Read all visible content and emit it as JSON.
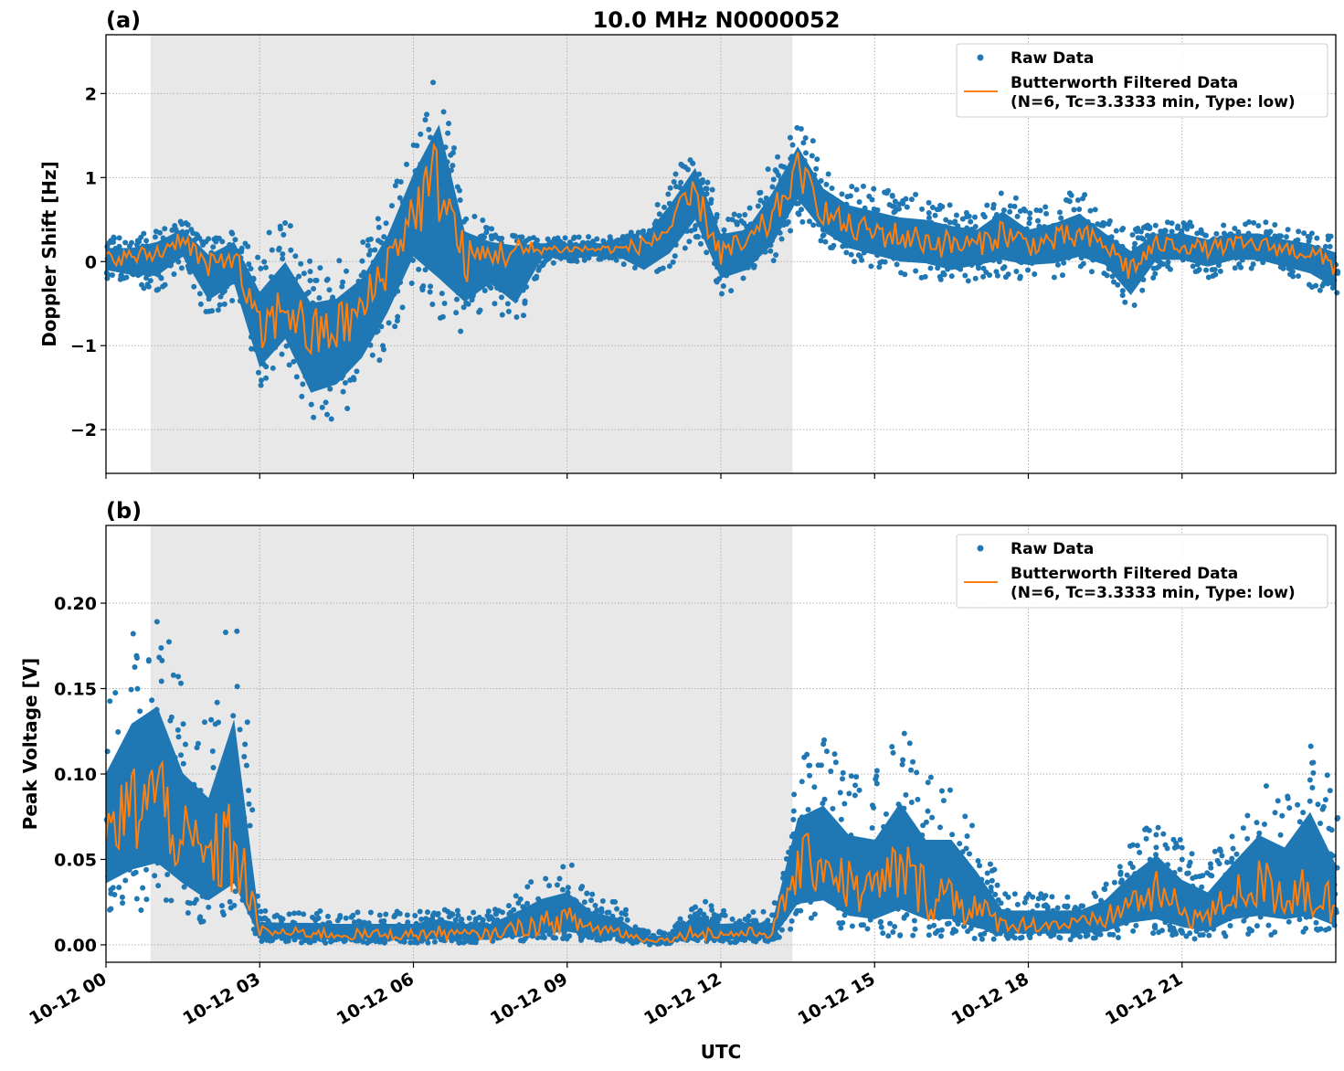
{
  "chart_data": [
    {
      "type": "scatter",
      "panel_label": "(a)",
      "title": "10.0 MHz N0000052",
      "xlabel": "",
      "ylabel": "Doppler Shift [Hz]",
      "xlim_hours": [
        0,
        24
      ],
      "ylim": [
        -2.52,
        2.7
      ],
      "yticks": [
        -2,
        -1,
        0,
        1,
        2
      ],
      "ytick_labels": [
        "−2",
        "−1",
        "0",
        "1",
        "2"
      ],
      "grid": true,
      "shaded_span_hours": [
        0.87,
        13.4
      ],
      "legend_position": "top-right",
      "legend": [
        "Raw Data",
        "Butterworth Filtered Data",
        "(N=6, Tc=3.3333 min, Type: low)"
      ],
      "x_hours": [
        0,
        0.5,
        1,
        1.5,
        2,
        2.5,
        3,
        3.5,
        4,
        4.5,
        5,
        5.5,
        6,
        6.5,
        7,
        7.5,
        8,
        8.5,
        9,
        9.5,
        10,
        10.5,
        11,
        11.5,
        12,
        12.5,
        13,
        13.5,
        14,
        14.5,
        15,
        15.5,
        16,
        16.5,
        17,
        17.5,
        18,
        18.5,
        19,
        19.5,
        20,
        20.5,
        21,
        21.5,
        22,
        22.5,
        23,
        23.5,
        24
      ],
      "series": [
        {
          "name": "Butterworth Filtered Data",
          "values": [
            0.05,
            0.05,
            0.1,
            0.3,
            -0.1,
            0.1,
            -0.9,
            -0.5,
            -0.9,
            -0.8,
            -0.6,
            0.0,
            0.6,
            1.0,
            0.0,
            0.1,
            0.1,
            0.15,
            0.15,
            0.15,
            0.15,
            0.2,
            0.4,
            0.8,
            0.1,
            0.2,
            0.5,
            1.1,
            0.6,
            0.4,
            0.35,
            0.3,
            0.25,
            0.2,
            0.2,
            0.35,
            0.2,
            0.25,
            0.3,
            0.2,
            -0.1,
            0.2,
            0.2,
            0.15,
            0.2,
            0.2,
            0.15,
            0.1,
            -0.05
          ]
        },
        {
          "name": "Raw Data (min envelope)",
          "values": [
            -0.2,
            -0.3,
            -0.35,
            -0.1,
            -0.7,
            -0.5,
            -1.5,
            -1.2,
            -2.0,
            -1.9,
            -1.5,
            -1.0,
            -0.3,
            -1.0,
            -0.8,
            -0.5,
            -0.9,
            -0.05,
            0.0,
            0.0,
            0.0,
            -0.3,
            -0.1,
            0.3,
            -0.4,
            -0.3,
            0.0,
            0.5,
            0.2,
            0.0,
            -0.1,
            -0.2,
            -0.2,
            -0.3,
            -0.2,
            -0.2,
            -0.2,
            -0.2,
            -0.1,
            -0.2,
            -0.6,
            -0.1,
            -0.1,
            -0.2,
            -0.1,
            -0.1,
            -0.2,
            -0.3,
            -0.5
          ]
        },
        {
          "name": "Raw Data (max envelope)",
          "values": [
            0.3,
            0.3,
            0.4,
            0.5,
            0.3,
            0.4,
            0.3,
            0.6,
            0.0,
            0.0,
            0.3,
            0.7,
            1.6,
            2.4,
            0.8,
            0.4,
            0.3,
            0.3,
            0.3,
            0.3,
            0.3,
            0.4,
            1.0,
            1.5,
            0.6,
            0.6,
            1.2,
            1.7,
            1.2,
            1.0,
            0.9,
            0.8,
            0.8,
            0.7,
            0.6,
            0.9,
            0.6,
            0.7,
            0.9,
            0.5,
            0.4,
            0.5,
            0.5,
            0.4,
            0.5,
            0.5,
            0.4,
            0.35,
            0.3
          ]
        }
      ],
      "colors": {
        "raw": "#1f77b4",
        "filtered": "#ff7f0e",
        "shade": "#e8e8e8"
      }
    },
    {
      "type": "scatter",
      "panel_label": "(b)",
      "xlabel": "UTC",
      "ylabel": "Peak Voltage [V]",
      "xlim_hours": [
        0,
        24
      ],
      "ylim": [
        -0.0102,
        0.2455
      ],
      "yticks": [
        0,
        0.05,
        0.1,
        0.15,
        0.2
      ],
      "ytick_labels": [
        "0.00",
        "0.05",
        "0.10",
        "0.15",
        "0.20"
      ],
      "xtick_hours": [
        0,
        3,
        6,
        9,
        12,
        15,
        18,
        21
      ],
      "xtick_labels": [
        "10-12 00",
        "10-12 03",
        "10-12 06",
        "10-12 09",
        "10-12 12",
        "10-12 15",
        "10-12 18",
        "10-12 21"
      ],
      "grid": true,
      "shaded_span_hours": [
        0.87,
        13.4
      ],
      "legend_position": "top-right",
      "legend": [
        "Raw Data",
        "Butterworth Filtered Data",
        "(N=6, Tc=3.3333 min, Type: low)"
      ],
      "x_hours": [
        0,
        0.5,
        1,
        1.5,
        2,
        2.5,
        3,
        3.5,
        4,
        4.5,
        5,
        5.5,
        6,
        6.5,
        7,
        7.5,
        8,
        8.5,
        9,
        9.5,
        10,
        10.5,
        11,
        11.5,
        12,
        12.5,
        13,
        13.5,
        14,
        14.5,
        15,
        15.5,
        16,
        16.5,
        17,
        17.5,
        18,
        18.5,
        19,
        19.5,
        20,
        20.5,
        21,
        21.5,
        22,
        22.5,
        23,
        23.5,
        24
      ],
      "series": [
        {
          "name": "Butterworth Filtered Data",
          "values": [
            0.06,
            0.08,
            0.09,
            0.06,
            0.05,
            0.06,
            0.008,
            0.007,
            0.007,
            0.006,
            0.006,
            0.006,
            0.006,
            0.007,
            0.006,
            0.006,
            0.01,
            0.012,
            0.015,
            0.01,
            0.008,
            0.003,
            0.003,
            0.008,
            0.006,
            0.007,
            0.007,
            0.045,
            0.05,
            0.035,
            0.03,
            0.045,
            0.03,
            0.03,
            0.02,
            0.012,
            0.012,
            0.012,
            0.012,
            0.015,
            0.025,
            0.03,
            0.02,
            0.015,
            0.03,
            0.035,
            0.03,
            0.035,
            0.02
          ]
        },
        {
          "name": "Raw Data (min envelope)",
          "values": [
            0.02,
            0.02,
            0.02,
            0.02,
            0.01,
            0.02,
            0.002,
            0.001,
            0.001,
            0.001,
            0.001,
            0.001,
            0.001,
            0.001,
            0.001,
            0.001,
            0.002,
            0.003,
            0.003,
            0.002,
            0.002,
            0.0,
            0.0,
            0.002,
            0.001,
            0.001,
            0.001,
            0.01,
            0.01,
            0.005,
            0.005,
            0.005,
            0.005,
            0.005,
            0.003,
            0.003,
            0.003,
            0.003,
            0.003,
            0.003,
            0.005,
            0.005,
            0.004,
            0.003,
            0.005,
            0.005,
            0.005,
            0.005,
            0.005
          ]
        },
        {
          "name": "Raw Data (max envelope)",
          "values": [
            0.15,
            0.19,
            0.2,
            0.15,
            0.13,
            0.22,
            0.02,
            0.02,
            0.02,
            0.02,
            0.02,
            0.02,
            0.02,
            0.025,
            0.02,
            0.02,
            0.03,
            0.045,
            0.05,
            0.03,
            0.025,
            0.008,
            0.008,
            0.03,
            0.02,
            0.02,
            0.02,
            0.11,
            0.12,
            0.1,
            0.1,
            0.13,
            0.1,
            0.1,
            0.07,
            0.03,
            0.03,
            0.03,
            0.03,
            0.04,
            0.06,
            0.08,
            0.06,
            0.05,
            0.07,
            0.1,
            0.09,
            0.13,
            0.08
          ]
        }
      ],
      "colors": {
        "raw": "#1f77b4",
        "filtered": "#ff7f0e",
        "shade": "#e8e8e8"
      }
    }
  ]
}
